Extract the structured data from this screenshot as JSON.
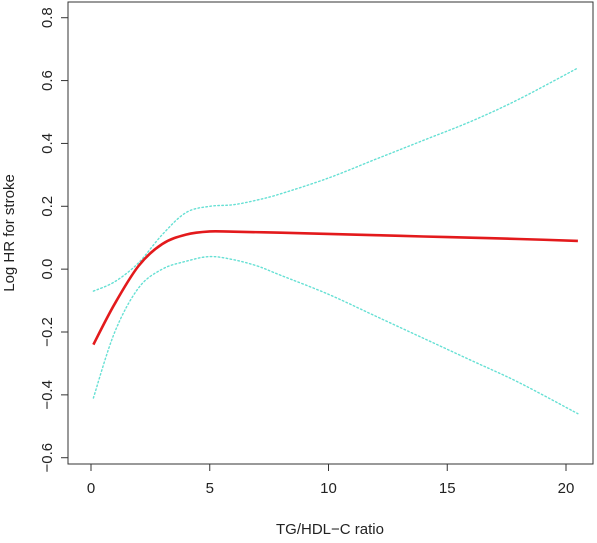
{
  "chart_data": {
    "type": "line",
    "title": "",
    "xlabel": "TG/HDL−C ratio",
    "ylabel": "Log HR for stroke",
    "xlim": [
      0,
      20.5
    ],
    "ylim": [
      -0.62,
      0.85
    ],
    "x_ticks": [
      0,
      5,
      10,
      15,
      20
    ],
    "y_ticks": [
      -0.6,
      -0.4,
      -0.2,
      0.0,
      0.2,
      0.4,
      0.6,
      0.8
    ],
    "x_tick_labels": [
      "0",
      "5",
      "10",
      "15",
      "20"
    ],
    "y_tick_labels": [
      "−0.6",
      "−0.4",
      "−0.2",
      "0.0",
      "0.2",
      "0.4",
      "0.6",
      "0.8"
    ],
    "grid": false,
    "legend": "none",
    "series": [
      {
        "role": "estimate",
        "color": "#e31a1c",
        "style": "solid",
        "x": [
          0.1,
          1.0,
          2.0,
          3.0,
          4.0,
          5.0,
          6.0,
          8.0,
          10.0,
          12.0,
          14.0,
          16.0,
          18.0,
          20.5
        ],
        "y": [
          -0.24,
          -0.11,
          0.01,
          0.08,
          0.11,
          0.12,
          0.119,
          0.116,
          0.112,
          0.108,
          0.104,
          0.1,
          0.096,
          0.09
        ]
      },
      {
        "role": "upper-ci",
        "color": "#66e0d4",
        "style": "dotted",
        "x": [
          0.1,
          1.0,
          2.0,
          3.0,
          4.0,
          5.0,
          6.0,
          7.0,
          8.0,
          10.0,
          12.0,
          14.0,
          16.0,
          18.0,
          20.5
        ],
        "y": [
          -0.07,
          -0.04,
          0.02,
          0.11,
          0.18,
          0.2,
          0.205,
          0.22,
          0.24,
          0.29,
          0.35,
          0.41,
          0.47,
          0.54,
          0.64
        ]
      },
      {
        "role": "lower-ci",
        "color": "#66e0d4",
        "style": "dotted",
        "x": [
          0.1,
          1.0,
          2.0,
          3.0,
          4.0,
          5.0,
          6.0,
          7.0,
          8.0,
          10.0,
          12.0,
          14.0,
          16.0,
          18.0,
          20.5
        ],
        "y": [
          -0.41,
          -0.2,
          -0.06,
          0.0,
          0.025,
          0.04,
          0.03,
          0.01,
          -0.02,
          -0.08,
          -0.15,
          -0.22,
          -0.29,
          -0.36,
          -0.46
        ]
      }
    ]
  }
}
